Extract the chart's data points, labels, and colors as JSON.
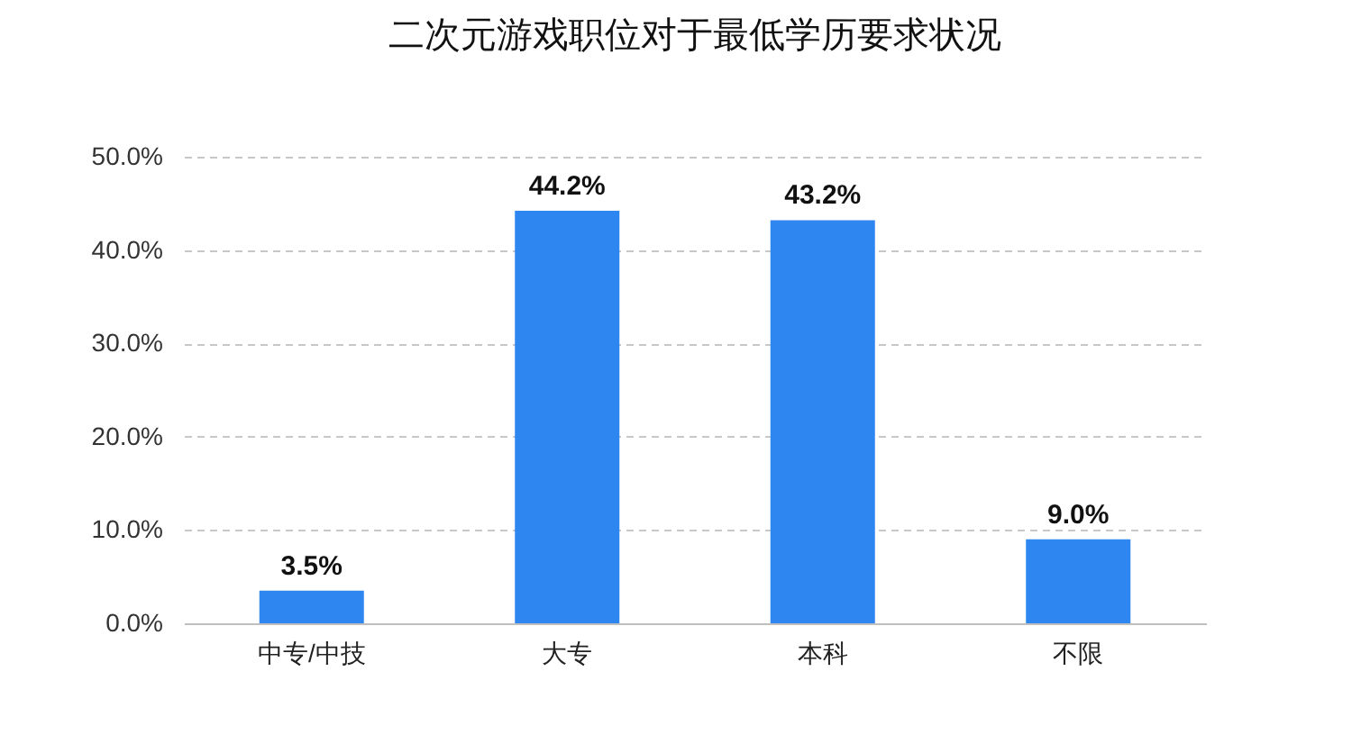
{
  "chart_data": {
    "type": "bar",
    "title": "二次元游戏职位对于最低学历要求状况",
    "categories": [
      "中专/中技",
      "大专",
      "本科",
      "不限"
    ],
    "values": [
      3.5,
      44.2,
      43.2,
      9.0
    ],
    "value_labels": [
      "3.5%",
      "44.2%",
      "43.2%",
      "9.0%"
    ],
    "color": "#2e86f0",
    "ylim": [
      0,
      50
    ],
    "yticks": [
      {
        "value": 0,
        "label": "0.0%"
      },
      {
        "value": 10,
        "label": "10.0%"
      },
      {
        "value": 20,
        "label": "20.0%"
      },
      {
        "value": 30,
        "label": "30.0%"
      },
      {
        "value": 40,
        "label": "40.0%"
      },
      {
        "value": 50,
        "label": "50.0%"
      }
    ],
    "grid": "y"
  }
}
